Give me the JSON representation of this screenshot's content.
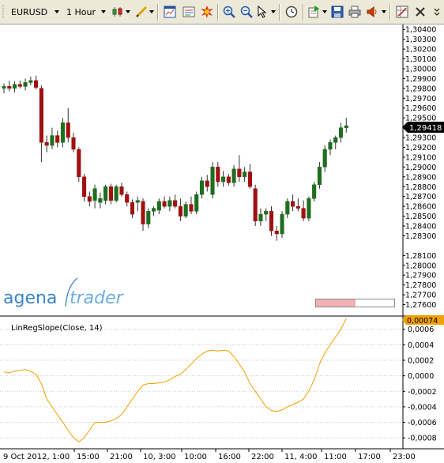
{
  "toolbar": {
    "instrument": "EURUSD",
    "timeframe": "1 Hour",
    "icons": [
      "candlestick-style-icon",
      "drawing-pen-icon",
      "chart-window-icon",
      "data-box-icon",
      "alert-burst-icon",
      "zoom-in-icon",
      "zoom-out-icon",
      "cursor-icon",
      "clock-icon",
      "export-icon",
      "save-icon",
      "print-icon",
      "sound-icon",
      "settings-grid-icon",
      "close-icon"
    ]
  },
  "colors": {
    "bull_candle": "#1e6e1e",
    "bear_candle": "#a01010",
    "indicator_line": "#f0a000",
    "current_price_bg": "#000000",
    "indicator_value_bg": "#f0a000",
    "gridline": "#c8c8c8"
  },
  "price_axis": {
    "labels": [
      "1,30400",
      "1,30300",
      "1,30200",
      "1,30100",
      "1,30000",
      "1,29900",
      "1,29800",
      "1,29700",
      "1,29600",
      "1,29500",
      "1,29300",
      "1,29200",
      "1,29100",
      "1,29000",
      "1,28900",
      "1,28800",
      "1,28700",
      "1,28600",
      "1,28500",
      "1,28400",
      "1,28300",
      "1,28100",
      "1,28000",
      "1,27900",
      "1,27800",
      "1,27700",
      "1,27600"
    ],
    "current_price": "1,29418"
  },
  "branding": {
    "logo_word1": "agena",
    "logo_word2": "trader"
  },
  "indicator": {
    "title": "LinRegSlope(Close, 14)",
    "current_value": "0,00074",
    "axis_labels": [
      "0,0006",
      "0,0004",
      "0,0002",
      "0,0000",
      "-0,0002",
      "-0,0004",
      "-0,0006",
      "-0,0008"
    ]
  },
  "time_axis": {
    "labels": [
      "9 Oct 2012, 1:00",
      "15:00",
      "21:00",
      "10, 3:00",
      "10:00",
      "16:00",
      "22:00",
      "11, 4:00",
      "11:00",
      "17:00",
      "23:00"
    ]
  },
  "chart_data": {
    "type": "candlestick",
    "candles": [
      {
        "o": 1.298,
        "h": 1.2985,
        "l": 1.2975,
        "c": 1.2982
      },
      {
        "o": 1.2982,
        "h": 1.2988,
        "l": 1.2977,
        "c": 1.298
      },
      {
        "o": 1.298,
        "h": 1.2987,
        "l": 1.2976,
        "c": 1.2984
      },
      {
        "o": 1.2984,
        "h": 1.2988,
        "l": 1.298,
        "c": 1.2982
      },
      {
        "o": 1.2982,
        "h": 1.299,
        "l": 1.2978,
        "c": 1.2986
      },
      {
        "o": 1.2986,
        "h": 1.2992,
        "l": 1.2983,
        "c": 1.2988
      },
      {
        "o": 1.2988,
        "h": 1.2993,
        "l": 1.2979,
        "c": 1.2981
      },
      {
        "o": 1.298,
        "h": 1.2983,
        "l": 1.2905,
        "c": 1.2925
      },
      {
        "o": 1.2925,
        "h": 1.2932,
        "l": 1.2915,
        "c": 1.2922
      },
      {
        "o": 1.2922,
        "h": 1.294,
        "l": 1.2918,
        "c": 1.2932
      },
      {
        "o": 1.2932,
        "h": 1.2937,
        "l": 1.292,
        "c": 1.2925
      },
      {
        "o": 1.2925,
        "h": 1.295,
        "l": 1.292,
        "c": 1.2945
      },
      {
        "o": 1.2945,
        "h": 1.296,
        "l": 1.2925,
        "c": 1.293
      },
      {
        "o": 1.293,
        "h": 1.2935,
        "l": 1.2915,
        "c": 1.2918
      },
      {
        "o": 1.2918,
        "h": 1.292,
        "l": 1.2885,
        "c": 1.289
      },
      {
        "o": 1.289,
        "h": 1.2893,
        "l": 1.2865,
        "c": 1.287
      },
      {
        "o": 1.287,
        "h": 1.2875,
        "l": 1.286,
        "c": 1.2865
      },
      {
        "o": 1.2866,
        "h": 1.2882,
        "l": 1.2858,
        "c": 1.2878
      },
      {
        "o": 1.2864,
        "h": 1.2874,
        "l": 1.2858,
        "c": 1.2868
      },
      {
        "o": 1.2866,
        "h": 1.2882,
        "l": 1.2862,
        "c": 1.288
      },
      {
        "o": 1.288,
        "h": 1.2883,
        "l": 1.2862,
        "c": 1.2866
      },
      {
        "o": 1.2866,
        "h": 1.2882,
        "l": 1.2864,
        "c": 1.288
      },
      {
        "o": 1.288,
        "h": 1.2884,
        "l": 1.287,
        "c": 1.2872
      },
      {
        "o": 1.2872,
        "h": 1.2875,
        "l": 1.286,
        "c": 1.2864
      },
      {
        "o": 1.2864,
        "h": 1.2867,
        "l": 1.2848,
        "c": 1.2852
      },
      {
        "o": 1.2864,
        "h": 1.287,
        "l": 1.2855,
        "c": 1.2866
      },
      {
        "o": 1.2865,
        "h": 1.2868,
        "l": 1.2835,
        "c": 1.2842
      },
      {
        "o": 1.2842,
        "h": 1.2858,
        "l": 1.2838,
        "c": 1.2855
      },
      {
        "o": 1.2855,
        "h": 1.286,
        "l": 1.285,
        "c": 1.2858
      },
      {
        "o": 1.2856,
        "h": 1.2868,
        "l": 1.2852,
        "c": 1.2865
      },
      {
        "o": 1.2865,
        "h": 1.287,
        "l": 1.2858,
        "c": 1.286
      },
      {
        "o": 1.286,
        "h": 1.287,
        "l": 1.2855,
        "c": 1.2866
      },
      {
        "o": 1.2866,
        "h": 1.2872,
        "l": 1.2858,
        "c": 1.286
      },
      {
        "o": 1.286,
        "h": 1.2868,
        "l": 1.2845,
        "c": 1.285
      },
      {
        "o": 1.285,
        "h": 1.2865,
        "l": 1.2848,
        "c": 1.2862
      },
      {
        "o": 1.2862,
        "h": 1.287,
        "l": 1.2852,
        "c": 1.2855
      },
      {
        "o": 1.2855,
        "h": 1.2875,
        "l": 1.2852,
        "c": 1.2872
      },
      {
        "o": 1.2872,
        "h": 1.289,
        "l": 1.2868,
        "c": 1.2886
      },
      {
        "o": 1.2886,
        "h": 1.2892,
        "l": 1.2875,
        "c": 1.288
      },
      {
        "o": 1.2872,
        "h": 1.2905,
        "l": 1.2868,
        "c": 1.29
      },
      {
        "o": 1.29,
        "h": 1.2905,
        "l": 1.288,
        "c": 1.2885
      },
      {
        "o": 1.2885,
        "h": 1.2896,
        "l": 1.288,
        "c": 1.289
      },
      {
        "o": 1.289,
        "h": 1.2893,
        "l": 1.2881,
        "c": 1.2884
      },
      {
        "o": 1.2884,
        "h": 1.2902,
        "l": 1.288,
        "c": 1.2898
      },
      {
        "o": 1.2898,
        "h": 1.2912,
        "l": 1.2885,
        "c": 1.289
      },
      {
        "o": 1.289,
        "h": 1.29,
        "l": 1.2885,
        "c": 1.2895
      },
      {
        "o": 1.2895,
        "h": 1.2903,
        "l": 1.2878,
        "c": 1.288
      },
      {
        "o": 1.2878,
        "h": 1.2882,
        "l": 1.284,
        "c": 1.2845
      },
      {
        "o": 1.2845,
        "h": 1.2858,
        "l": 1.284,
        "c": 1.2852
      },
      {
        "o": 1.2852,
        "h": 1.2858,
        "l": 1.2845,
        "c": 1.2855
      },
      {
        "o": 1.2855,
        "h": 1.286,
        "l": 1.283,
        "c": 1.2835
      },
      {
        "o": 1.2835,
        "h": 1.284,
        "l": 1.2825,
        "c": 1.2832
      },
      {
        "o": 1.2832,
        "h": 1.2855,
        "l": 1.2828,
        "c": 1.2852
      },
      {
        "o": 1.2852,
        "h": 1.2868,
        "l": 1.2848,
        "c": 1.2865
      },
      {
        "o": 1.2865,
        "h": 1.2872,
        "l": 1.2855,
        "c": 1.286
      },
      {
        "o": 1.286,
        "h": 1.2868,
        "l": 1.2855,
        "c": 1.2858
      },
      {
        "o": 1.2858,
        "h": 1.2866,
        "l": 1.2845,
        "c": 1.2848
      },
      {
        "o": 1.2848,
        "h": 1.287,
        "l": 1.2845,
        "c": 1.2868
      },
      {
        "o": 1.2868,
        "h": 1.2885,
        "l": 1.2865,
        "c": 1.2882
      },
      {
        "o": 1.2882,
        "h": 1.2905,
        "l": 1.2878,
        "c": 1.29
      },
      {
        "o": 1.29,
        "h": 1.2922,
        "l": 1.2895,
        "c": 1.2918
      },
      {
        "o": 1.2918,
        "h": 1.2928,
        "l": 1.2912,
        "c": 1.2925
      },
      {
        "o": 1.2925,
        "h": 1.2932,
        "l": 1.2918,
        "c": 1.293
      },
      {
        "o": 1.293,
        "h": 1.2945,
        "l": 1.2925,
        "c": 1.294
      },
      {
        "o": 1.294,
        "h": 1.295,
        "l": 1.2935,
        "c": 1.2942
      }
    ],
    "indicator_values": [
      5e-05,
      4e-05,
      6e-05,
      7e-05,
      8e-05,
      6e-05,
      2e-05,
      -0.0001,
      -0.0003,
      -0.0004,
      -0.0005,
      -0.0006,
      -0.0007,
      -0.0008,
      -0.00085,
      -0.0008,
      -0.0007,
      -0.0006,
      -0.0006,
      -0.0006,
      -0.00058,
      -0.00055,
      -0.0005,
      -0.0004,
      -0.0003,
      -0.0002,
      -0.00012,
      -0.0001,
      -0.0001,
      -9e-05,
      -8e-05,
      -5e-05,
      -1e-05,
      2e-05,
      8e-05,
      0.00015,
      0.00022,
      0.00028,
      0.00032,
      0.00033,
      0.00032,
      0.00033,
      0.00032,
      0.00025,
      0.00015,
      5e-05,
      -0.0001,
      -0.0002,
      -0.0003,
      -0.0004,
      -0.00045,
      -0.00046,
      -0.00044,
      -0.0004,
      -0.00037,
      -0.00034,
      -0.0003,
      -0.0002,
      -5e-05,
      0.00015,
      0.0003,
      0.0004,
      0.0005,
      0.0006,
      0.00074
    ],
    "ylim": [
      1.275,
      1.3045
    ],
    "indicator_ylim": [
      -0.00092,
      0.00075
    ]
  }
}
